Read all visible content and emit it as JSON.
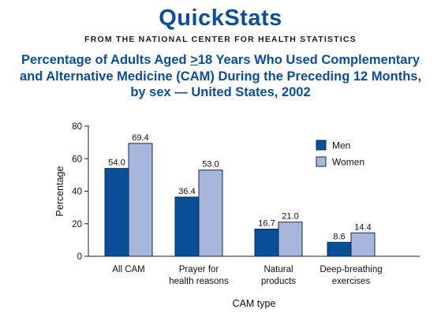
{
  "header": {
    "brand": "QuickStats",
    "subtitle": "FROM THE NATIONAL CENTER FOR HEALTH STATISTICS"
  },
  "chart_data": {
    "type": "bar",
    "title_parts": {
      "before": "Percentage of Adults Aged ",
      "ge_symbol": ">",
      "after_line1": "18 Years Who Used Complementary",
      "line2": "and Alternative Medicine (CAM) During the Preceding 12 Months,",
      "line3": "by sex — United States, 2002"
    },
    "categories": [
      [
        "All CAM"
      ],
      [
        "Prayer for",
        "health reasons"
      ],
      [
        "Natural",
        "products"
      ],
      [
        "Deep-breathing",
        "exercises"
      ]
    ],
    "series": [
      {
        "name": "Men",
        "color": "#0a4f97",
        "values": [
          54.0,
          36.4,
          16.7,
          8.6
        ],
        "labels": [
          "54.0",
          "36.4",
          "16.7",
          "8.6"
        ]
      },
      {
        "name": "Women",
        "color": "#a8b6dc",
        "values": [
          69.4,
          53.0,
          21.0,
          14.4
        ],
        "labels": [
          "69.4",
          "53.0",
          "21.0",
          "14.4"
        ]
      }
    ],
    "xlabel": "CAM type",
    "ylabel": "Percentage",
    "ylim": [
      0,
      80
    ],
    "yticks": [
      0,
      20,
      40,
      60,
      80
    ],
    "grid": false,
    "legend_position": "top-right"
  }
}
